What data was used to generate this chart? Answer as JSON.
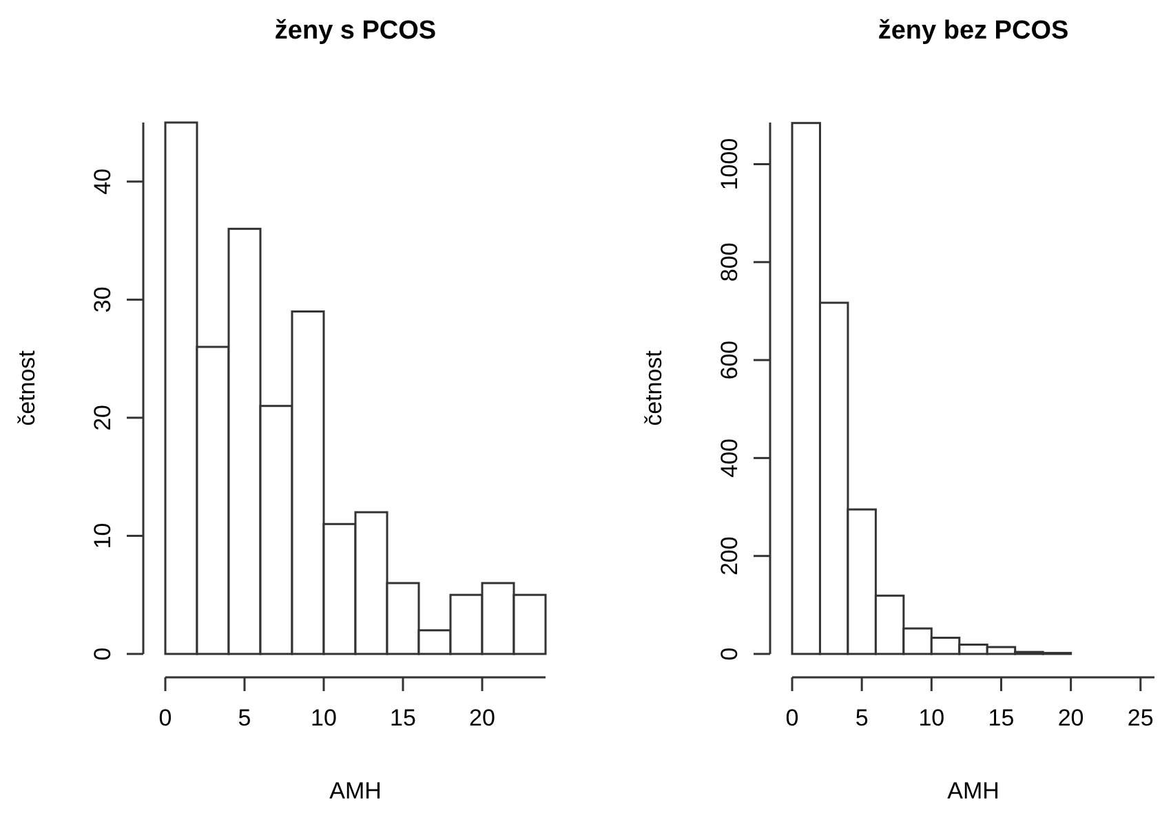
{
  "chart_data": [
    {
      "type": "histogram",
      "title": "ženy s PCOS",
      "xlabel": "AMH",
      "ylabel": "četnost",
      "bins": [
        0,
        2,
        4,
        6,
        8,
        10,
        12,
        14,
        16,
        18,
        20,
        22,
        24
      ],
      "values": [
        45,
        26,
        36,
        21,
        29,
        11,
        12,
        6,
        2,
        5,
        6,
        5
      ],
      "color": "#ffffff",
      "xlim": [
        0,
        24
      ],
      "ylim": [
        0,
        45
      ],
      "xticks": [
        0,
        5,
        10,
        15,
        20
      ],
      "yticks": [
        0,
        10,
        20,
        30,
        40
      ]
    },
    {
      "type": "histogram",
      "title": "ženy bez PCOS",
      "xlabel": "AMH",
      "ylabel": "četnost",
      "bins": [
        0,
        2,
        4,
        6,
        8,
        10,
        12,
        14,
        16,
        18,
        20,
        22,
        24,
        26
      ],
      "values": [
        1084,
        717,
        295,
        119,
        52,
        33,
        19,
        14,
        4,
        2,
        0,
        0,
        0
      ],
      "color": "#ffffff",
      "xlim": [
        0,
        26
      ],
      "ylim": [
        0,
        1085
      ],
      "xticks": [
        0,
        5,
        10,
        15,
        20,
        25
      ],
      "yticks": [
        0,
        200,
        400,
        600,
        800,
        1000
      ]
    }
  ]
}
